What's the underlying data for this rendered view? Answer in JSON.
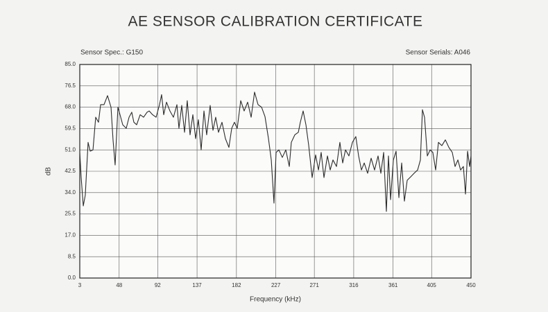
{
  "chart_data": {
    "type": "line",
    "title": "AE SENSOR CALIBRATION CERTIFICATE",
    "subtitle_left": "Sensor Spec.: G150",
    "subtitle_right": "Sensor Serials: A046",
    "x_label": "Frequency (kHz)",
    "y_label": "dB",
    "color": "#2b2b2b",
    "grid": true,
    "xlim": [
      3,
      450
    ],
    "ylim": [
      0,
      85
    ],
    "xticks": [
      3,
      48,
      92,
      137,
      182,
      227,
      271,
      316,
      361,
      405,
      450
    ],
    "yticks": [
      {
        "value": 0,
        "label": "0.0"
      },
      8.5,
      {
        "value": 17,
        "label": "17.0"
      },
      25.5,
      {
        "value": 34,
        "label": "34.0"
      },
      42.5,
      {
        "value": 51,
        "label": "51.0"
      },
      59.5,
      {
        "value": 68,
        "label": "68.0"
      },
      76.5,
      {
        "value": 85,
        "label": "85.0"
      }
    ],
    "x": [
      3,
      4.6,
      7.0,
      9.3,
      12.5,
      14.9,
      18.1,
      21.2,
      24.4,
      26.8,
      30.7,
      34.7,
      38.7,
      41.0,
      43.4,
      46.6,
      49.0,
      52.1,
      56.1,
      59.3,
      62.4,
      64.8,
      68.0,
      72.0,
      75.9,
      79.9,
      82.3,
      86.2,
      90.2,
      94.1,
      96.5,
      98.9,
      102.1,
      106.0,
      110.0,
      114.0,
      116.3,
      119.5,
      122.7,
      125.8,
      129.0,
      132.2,
      135.4,
      138.5,
      141.7,
      144.9,
      148.0,
      152.0,
      155.2,
      158.3,
      161.5,
      165.5,
      169.4,
      173.4,
      176.6,
      179.7,
      182.9,
      186.9,
      190.8,
      194.8,
      198.8,
      202.7,
      206.7,
      210.7,
      214.6,
      218.6,
      221.8,
      224.9,
      227.3,
      230.5,
      234.4,
      238.4,
      242.4,
      244.7,
      248.7,
      252.7,
      255.0,
      258.2,
      261.4,
      264.6,
      268.5,
      272.5,
      275.7,
      278.8,
      282.0,
      286.0,
      289.1,
      292.3,
      296.3,
      300.2,
      303.4,
      306.6,
      310.5,
      314.5,
      318.4,
      321.6,
      324.8,
      328.0,
      331.9,
      335.9,
      339.8,
      343.8,
      347.0,
      350.2,
      353.3,
      355.7,
      358.1,
      361.3,
      364.4,
      367.6,
      370.8,
      373.9,
      377.1,
      381.1,
      385.0,
      389.0,
      392.2,
      394.5,
      396.9,
      400.1,
      403.3,
      406.4,
      409.6,
      412.8,
      416.7,
      420.7,
      424.7,
      428.6,
      431.8,
      435.0,
      438.1,
      441.3,
      443.7,
      446.1,
      448.4,
      450
    ],
    "values": [
      50,
      40,
      28.7,
      33,
      54,
      50.5,
      51,
      64,
      62,
      69,
      69,
      72.6,
      68,
      55,
      45,
      68,
      65,
      61,
      59.6,
      64,
      66,
      62,
      61,
      65,
      64,
      66,
      66.5,
      65,
      64,
      69,
      73,
      65,
      70,
      66.5,
      64,
      69,
      59.6,
      68.7,
      58,
      70.6,
      57,
      65,
      55.5,
      63,
      51,
      66.5,
      57,
      68.7,
      58.8,
      64,
      58,
      62,
      55.5,
      52,
      59.6,
      62,
      59.6,
      70.6,
      66.5,
      70,
      64,
      74,
      69,
      68,
      64.3,
      55.5,
      47,
      29.8,
      50,
      51,
      48,
      51,
      44.4,
      54,
      57,
      58,
      62,
      66.5,
      61,
      52.7,
      40,
      49,
      43,
      50,
      40,
      48.6,
      43,
      47,
      44.4,
      54,
      45.8,
      51,
      48.6,
      54,
      56.3,
      48.6,
      43,
      45.8,
      41.7,
      47.7,
      43,
      48.6,
      41.7,
      50,
      26.5,
      48.6,
      31.2,
      47,
      50.5,
      32,
      45.8,
      30.6,
      38.9,
      40.3,
      41.7,
      43,
      47,
      67,
      64,
      48.6,
      51,
      50,
      43,
      54,
      52.7,
      55,
      52,
      50,
      44.4,
      47,
      43,
      44.4,
      33.4,
      50.5,
      44.4,
      48.6
    ]
  }
}
